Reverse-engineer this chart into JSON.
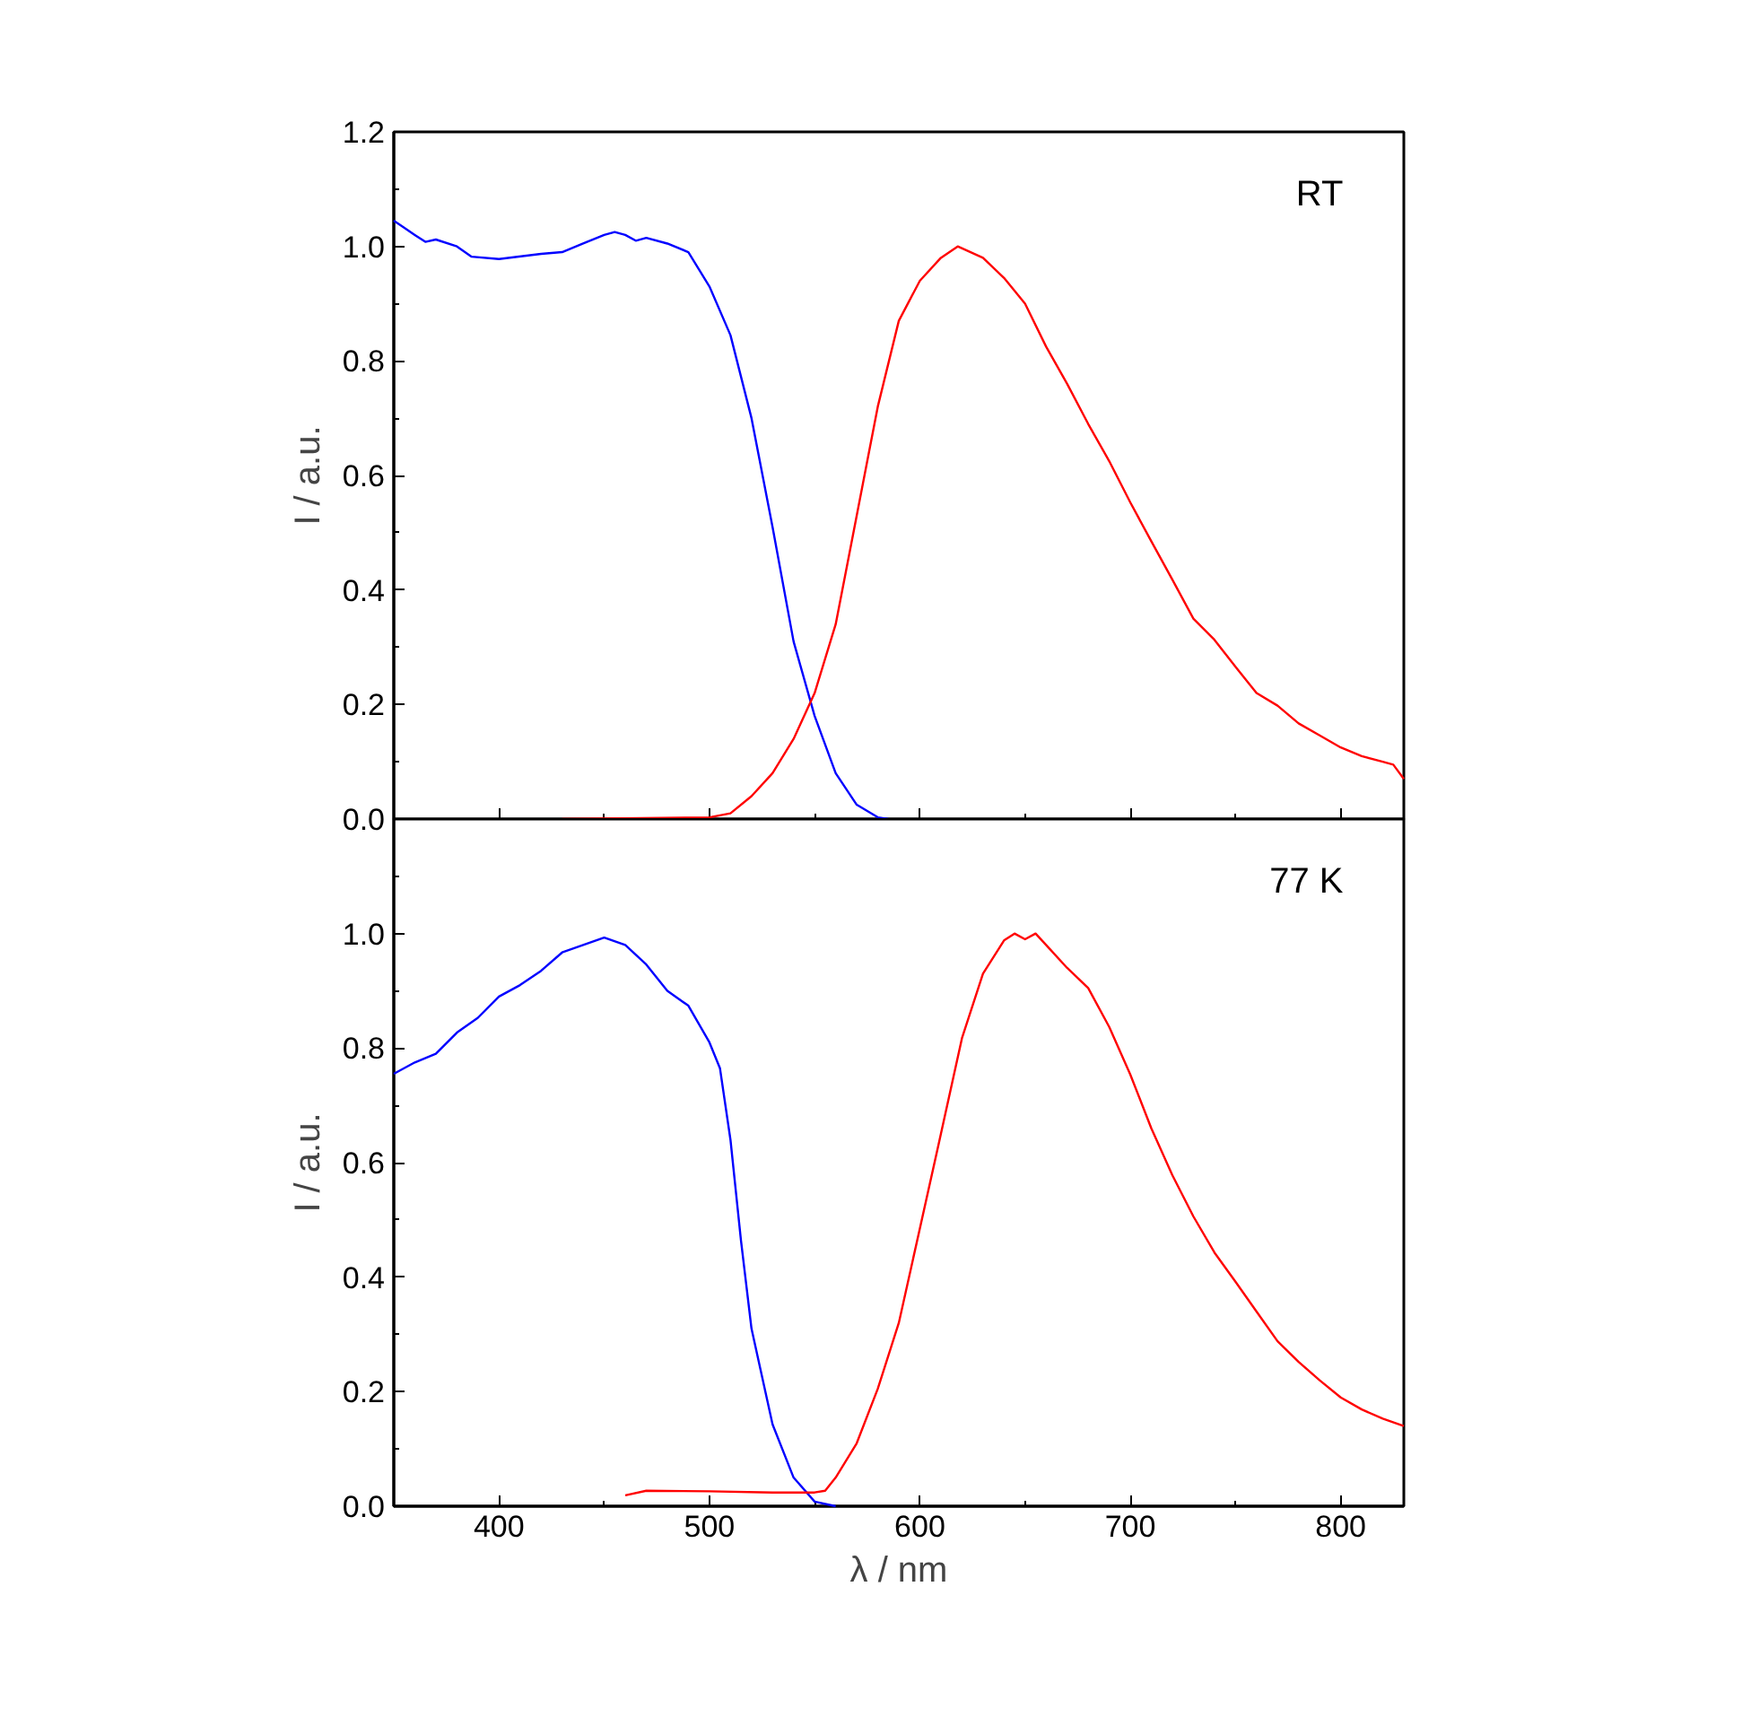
{
  "chart_data": [
    {
      "type": "line",
      "ylabel": "I / a.u.",
      "annotations": [
        "RT"
      ],
      "xlim": [
        350,
        830
      ],
      "ylim": [
        0,
        1.2
      ],
      "xticks": [
        400,
        {
          "value": 450,
          "label": null
        },
        500,
        {
          "value": 550,
          "label": null
        },
        600,
        {
          "value": 650,
          "label": null
        },
        700,
        {
          "value": 750,
          "label": null
        },
        800
      ],
      "yticks": [
        {
          "value": 0,
          "label": "0.0"
        },
        {
          "value": 0.1,
          "label": null
        },
        0.2,
        {
          "value": 0.3,
          "label": null
        },
        0.4,
        {
          "value": 0.5,
          "label": null
        },
        0.6,
        {
          "value": 0.7,
          "label": null
        },
        0.8,
        {
          "value": 0.9,
          "label": null
        },
        {
          "value": 1.0,
          "label": "1.0"
        },
        {
          "value": 1.1,
          "label": null
        },
        {
          "value": 1.2,
          "label": "1.2"
        }
      ],
      "tick_labels": "y",
      "grid": false,
      "line_style": "solid",
      "marker": "none",
      "series": [
        {
          "color": "#0000ff",
          "x": [
            350,
            360,
            365,
            370,
            380,
            387,
            400,
            420,
            430,
            440,
            450,
            455,
            460,
            465,
            470,
            480,
            490,
            500,
            510,
            520,
            530,
            540,
            550,
            560,
            570,
            580,
            585
          ],
          "values": [
            1.045,
            1.02,
            1.008,
            1.012,
            1.0,
            0.982,
            0.978,
            0.987,
            0.99,
            1.005,
            1.02,
            1.025,
            1.02,
            1.01,
            1.015,
            1.005,
            0.99,
            0.93,
            0.845,
            0.7,
            0.51,
            0.31,
            0.18,
            0.08,
            0.025,
            0.003,
            0
          ]
        },
        {
          "color": "#ff0000",
          "x": [
            430,
            500,
            510,
            520,
            530,
            540,
            550,
            560,
            570,
            580,
            590,
            600,
            610,
            618,
            630,
            640,
            650,
            660,
            670,
            680,
            690,
            700,
            710,
            720,
            730,
            740,
            750,
            760,
            770,
            780,
            790,
            800,
            810,
            820,
            825,
            830
          ],
          "values": [
            0,
            0.003,
            0.01,
            0.04,
            0.08,
            0.14,
            0.22,
            0.34,
            0.53,
            0.72,
            0.87,
            0.94,
            0.98,
            1.0,
            0.98,
            0.945,
            0.9,
            0.825,
            0.76,
            0.69,
            0.625,
            0.553,
            0.485,
            0.418,
            0.35,
            0.313,
            0.266,
            0.22,
            0.198,
            0.167,
            0.146,
            0.125,
            0.11,
            0.1,
            0.095,
            0.07
          ]
        }
      ]
    },
    {
      "type": "line",
      "xlabel": "λ / nm",
      "ylabel": "I / a.u.",
      "annotations": [
        "77 K"
      ],
      "xlim": [
        350,
        830
      ],
      "ylim": [
        0,
        1.2
      ],
      "xticks": [
        400,
        {
          "value": 450,
          "label": null
        },
        500,
        {
          "value": 550,
          "label": null
        },
        600,
        {
          "value": 650,
          "label": null
        },
        700,
        {
          "value": 750,
          "label": null
        },
        800
      ],
      "yticks": [
        {
          "value": 0,
          "label": "0.0"
        },
        {
          "value": 0.1,
          "label": null
        },
        0.2,
        {
          "value": 0.3,
          "label": null
        },
        0.4,
        {
          "value": 0.5,
          "label": null
        },
        0.6,
        {
          "value": 0.7,
          "label": null
        },
        0.8,
        {
          "value": 0.9,
          "label": null
        },
        {
          "value": 1.0,
          "label": "1.0"
        },
        {
          "value": 1.1,
          "label": null
        }
      ],
      "grid": false,
      "line_style": "solid",
      "marker": "none",
      "series": [
        {
          "color": "#0000ff",
          "x": [
            350,
            360,
            370,
            380,
            390,
            400,
            410,
            420,
            430,
            440,
            450,
            460,
            470,
            480,
            490,
            500,
            505,
            510,
            515,
            520,
            530,
            540,
            550,
            560
          ],
          "values": [
            0.755,
            0.775,
            0.79,
            0.827,
            0.853,
            0.89,
            0.91,
            0.935,
            0.967,
            0.98,
            0.993,
            0.98,
            0.946,
            0.9,
            0.874,
            0.81,
            0.765,
            0.64,
            0.464,
            0.31,
            0.143,
            0.05,
            0.008,
            0
          ]
        },
        {
          "color": "#ff0000",
          "x": [
            460,
            470,
            500,
            530,
            550,
            555,
            560,
            570,
            580,
            590,
            600,
            610,
            620,
            630,
            640,
            645,
            650,
            655,
            660,
            670,
            680,
            690,
            700,
            710,
            720,
            730,
            740,
            750,
            760,
            770,
            780,
            790,
            800,
            810,
            820,
            830
          ],
          "values": [
            0.019,
            0.027,
            0.026,
            0.024,
            0.024,
            0.027,
            0.05,
            0.11,
            0.205,
            0.32,
            0.485,
            0.65,
            0.817,
            0.93,
            0.988,
            1.0,
            0.99,
            1.0,
            0.98,
            0.94,
            0.905,
            0.837,
            0.754,
            0.66,
            0.578,
            0.506,
            0.443,
            0.392,
            0.34,
            0.288,
            0.252,
            0.22,
            0.19,
            0.169,
            0.153,
            0.14
          ]
        }
      ]
    }
  ]
}
